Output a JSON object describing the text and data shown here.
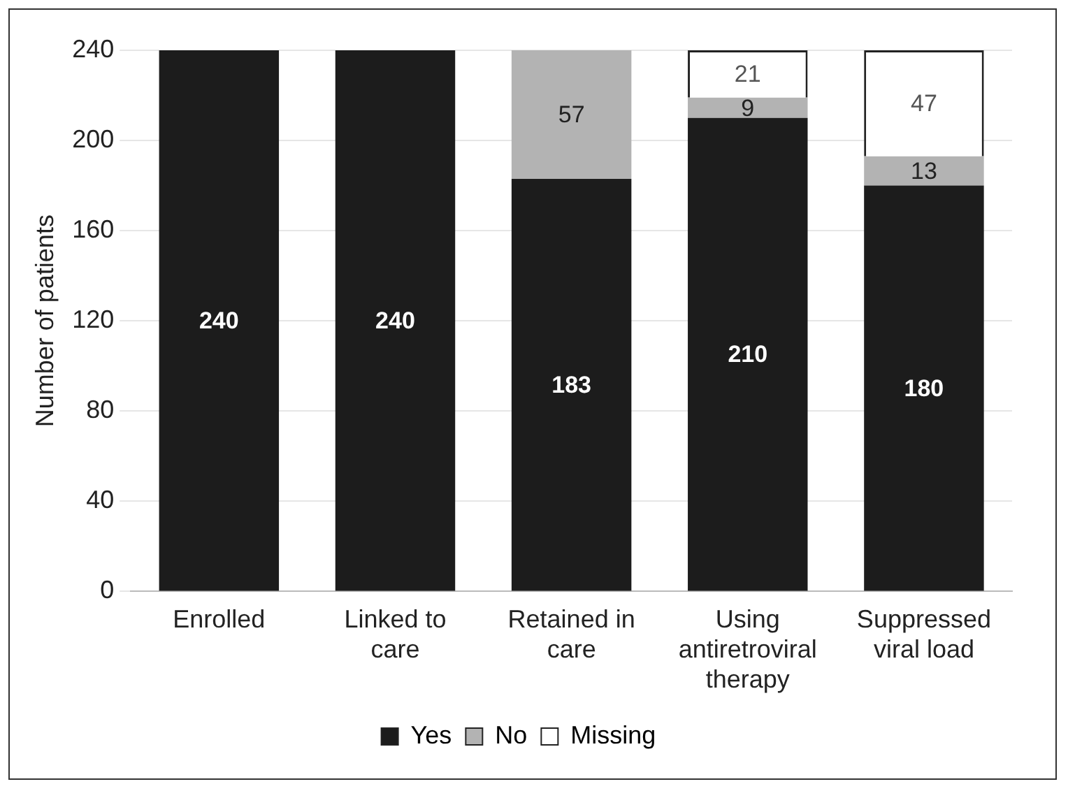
{
  "chart_data": {
    "type": "bar",
    "ylabel": "Number of patients",
    "stacked": true,
    "categories": [
      "Enrolled",
      "Linked to care",
      "Retained in care",
      "Using antiretroviral therapy",
      "Suppressed viral load"
    ],
    "series": [
      {
        "name": "Yes",
        "color": "#1c1c1c",
        "values": [
          240,
          240,
          183,
          210,
          180
        ],
        "value_labels": [
          "240",
          "240",
          "183",
          "210",
          "180"
        ]
      },
      {
        "name": "No",
        "color": "#b3b3b3",
        "values": [
          0,
          0,
          57,
          9,
          13
        ],
        "value_labels": [
          null,
          null,
          "57",
          "9",
          "13"
        ]
      },
      {
        "name": "Missing",
        "color": "#ffffff",
        "values": [
          0,
          0,
          0,
          21,
          47
        ],
        "value_labels": [
          null,
          null,
          null,
          "21",
          "47"
        ]
      }
    ],
    "ylim": [
      0,
      240
    ],
    "yticks": [
      0,
      40,
      80,
      120,
      160,
      200,
      240
    ],
    "grid": "y",
    "legend": "bottom"
  }
}
